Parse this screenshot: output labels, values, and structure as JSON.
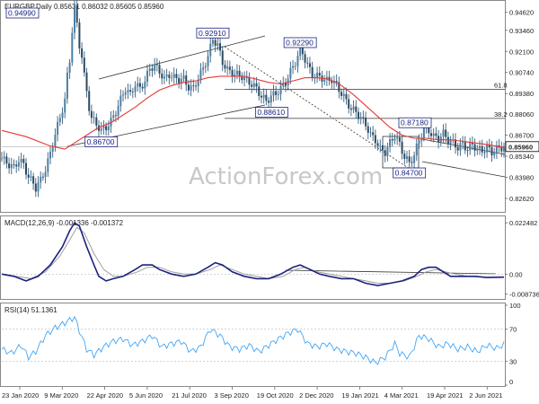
{
  "chart_data": [
    {
      "type": "candlestick",
      "header": "EURGBP,Daily  0.85631 0.86032 0.85605 0.85960",
      "price_axis": {
        "ylim": [
          0.8175,
          0.953
        ],
        "ticks": [
          "0.94620",
          "0.93460",
          "0.92100",
          "0.90740",
          "0.89380",
          "0.88060",
          "0.86700",
          "0.85340",
          "0.83980",
          "0.82620"
        ]
      },
      "last_price": "0.85960",
      "date_labels": [
        "23 Jan 2020",
        "9 Mar 2020",
        "22 Apr 2020",
        "5 Jun 2020",
        "21 Jul 2020",
        "3 Sep 2020",
        "19 Oct 2020",
        "2 Dec 2020",
        "19 Jan 2021",
        "4 Mar 2021",
        "19 Apr 2021",
        "2 Jun 2021"
      ],
      "close_path": [
        [
          0,
          0.852
        ],
        [
          3,
          0.848
        ],
        [
          5,
          0.846
        ],
        [
          7,
          0.851
        ],
        [
          9,
          0.848
        ],
        [
          11,
          0.84
        ],
        [
          13,
          0.836
        ],
        [
          14,
          0.833
        ],
        [
          16,
          0.838
        ],
        [
          18,
          0.845
        ],
        [
          20,
          0.855
        ],
        [
          22,
          0.868
        ],
        [
          24,
          0.878
        ],
        [
          26,
          0.89
        ],
        [
          27,
          0.905
        ],
        [
          28,
          0.915
        ],
        [
          29,
          0.935
        ],
        [
          30,
          0.949
        ],
        [
          31,
          0.938
        ],
        [
          32,
          0.925
        ],
        [
          33,
          0.918
        ],
        [
          34,
          0.905
        ],
        [
          35,
          0.895
        ],
        [
          36,
          0.885
        ],
        [
          37,
          0.878
        ],
        [
          39,
          0.874
        ],
        [
          41,
          0.87
        ],
        [
          43,
          0.872
        ],
        [
          45,
          0.876
        ],
        [
          47,
          0.882
        ],
        [
          49,
          0.89
        ],
        [
          51,
          0.897
        ],
        [
          53,
          0.893
        ],
        [
          55,
          0.9
        ],
        [
          57,
          0.897
        ],
        [
          59,
          0.902
        ],
        [
          61,
          0.91
        ],
        [
          63,
          0.912
        ],
        [
          65,
          0.908
        ],
        [
          67,
          0.903
        ],
        [
          69,
          0.906
        ],
        [
          71,
          0.904
        ],
        [
          73,
          0.903
        ],
        [
          75,
          0.903
        ],
        [
          77,
          0.898
        ],
        [
          79,
          0.897
        ],
        [
          81,
          0.904
        ],
        [
          83,
          0.91
        ],
        [
          85,
          0.918
        ],
        [
          87,
          0.929
        ],
        [
          89,
          0.925
        ],
        [
          91,
          0.914
        ],
        [
          93,
          0.909
        ],
        [
          95,
          0.907
        ],
        [
          97,
          0.906
        ],
        [
          99,
          0.905
        ],
        [
          101,
          0.902
        ],
        [
          103,
          0.9
        ],
        [
          105,
          0.897
        ],
        [
          107,
          0.892
        ],
        [
          109,
          0.889
        ],
        [
          111,
          0.892
        ],
        [
          113,
          0.894
        ],
        [
          115,
          0.897
        ],
        [
          117,
          0.901
        ],
        [
          119,
          0.908
        ],
        [
          121,
          0.914
        ],
        [
          123,
          0.922
        ],
        [
          124,
          0.92
        ],
        [
          126,
          0.912
        ],
        [
          128,
          0.906
        ],
        [
          130,
          0.905
        ],
        [
          132,
          0.904
        ],
        [
          134,
          0.902
        ],
        [
          136,
          0.903
        ],
        [
          138,
          0.899
        ],
        [
          140,
          0.894
        ],
        [
          142,
          0.889
        ],
        [
          144,
          0.884
        ],
        [
          146,
          0.882
        ],
        [
          148,
          0.878
        ],
        [
          150,
          0.874
        ],
        [
          152,
          0.867
        ],
        [
          154,
          0.864
        ],
        [
          156,
          0.858
        ],
        [
          158,
          0.856
        ],
        [
          160,
          0.862
        ],
        [
          162,
          0.867
        ],
        [
          164,
          0.861
        ],
        [
          166,
          0.853
        ],
        [
          168,
          0.849
        ],
        [
          170,
          0.854
        ],
        [
          172,
          0.864
        ],
        [
          174,
          0.871
        ],
        [
          176,
          0.87
        ],
        [
          178,
          0.866
        ],
        [
          180,
          0.865
        ],
        [
          182,
          0.868
        ],
        [
          184,
          0.864
        ],
        [
          186,
          0.862
        ],
        [
          188,
          0.859
        ],
        [
          190,
          0.861
        ],
        [
          192,
          0.858
        ],
        [
          194,
          0.861
        ],
        [
          196,
          0.858
        ],
        [
          198,
          0.857
        ],
        [
          200,
          0.859
        ],
        [
          202,
          0.856
        ],
        [
          204,
          0.858
        ],
        [
          206,
          0.859
        ],
        [
          207,
          0.8596
        ]
      ],
      "ma_path": [
        [
          0,
          0.87
        ],
        [
          10,
          0.866
        ],
        [
          20,
          0.86
        ],
        [
          26,
          0.858
        ],
        [
          30,
          0.862
        ],
        [
          35,
          0.867
        ],
        [
          40,
          0.872
        ],
        [
          45,
          0.875
        ],
        [
          50,
          0.88
        ],
        [
          55,
          0.885
        ],
        [
          60,
          0.891
        ],
        [
          65,
          0.896
        ],
        [
          70,
          0.899
        ],
        [
          75,
          0.901
        ],
        [
          80,
          0.902
        ],
        [
          85,
          0.904
        ],
        [
          90,
          0.905
        ],
        [
          95,
          0.905
        ],
        [
          100,
          0.905
        ],
        [
          105,
          0.903
        ],
        [
          110,
          0.901
        ],
        [
          115,
          0.9
        ],
        [
          120,
          0.902
        ],
        [
          125,
          0.904
        ],
        [
          130,
          0.904
        ],
        [
          135,
          0.903
        ],
        [
          140,
          0.899
        ],
        [
          145,
          0.893
        ],
        [
          150,
          0.886
        ],
        [
          155,
          0.879
        ],
        [
          160,
          0.872
        ],
        [
          165,
          0.867
        ],
        [
          170,
          0.865
        ],
        [
          175,
          0.865
        ],
        [
          180,
          0.864
        ],
        [
          185,
          0.864
        ],
        [
          190,
          0.863
        ],
        [
          195,
          0.862
        ],
        [
          200,
          0.861
        ],
        [
          207,
          0.859
        ]
      ],
      "price_labels": [
        {
          "text": "0.94990",
          "x": 30,
          "y": 0.9499
        },
        {
          "text": "0.92910",
          "x": 87,
          "y": 0.9291
        },
        {
          "text": "0.92290",
          "x": 123,
          "y": 0.9229
        },
        {
          "text": "0.88610",
          "x": 109,
          "y": 0.8861
        },
        {
          "text": "0.86700",
          "x": 41,
          "y": 0.867
        },
        {
          "text": "0.87180",
          "x": 172,
          "y": 0.8718
        },
        {
          "text": "0.84700",
          "x": 168,
          "y": 0.847
        }
      ],
      "fib_levels": [
        {
          "label": "61.8",
          "y": 0.8966
        },
        {
          "label": "38.2",
          "y": 0.8778
        }
      ]
    },
    {
      "type": "line",
      "header": "MACD(12,26,9) -0.001336 -0.001372",
      "ticks": [
        "0.022482",
        "0.00",
        "-0.008736"
      ],
      "ylim": [
        -0.0105,
        0.0245
      ],
      "macd": [
        [
          0,
          0.0
        ],
        [
          5,
          -0.001
        ],
        [
          10,
          -0.003
        ],
        [
          15,
          -0.001
        ],
        [
          20,
          0.004
        ],
        [
          25,
          0.012
        ],
        [
          28,
          0.019
        ],
        [
          30,
          0.0225
        ],
        [
          32,
          0.021
        ],
        [
          35,
          0.012
        ],
        [
          38,
          0.004
        ],
        [
          40,
          -0.001
        ],
        [
          43,
          -0.003
        ],
        [
          46,
          -0.002
        ],
        [
          50,
          -0.001
        ],
        [
          55,
          0.002
        ],
        [
          58,
          0.004
        ],
        [
          62,
          0.004
        ],
        [
          65,
          0.002
        ],
        [
          70,
          0.0
        ],
        [
          75,
          -0.001
        ],
        [
          80,
          0.0
        ],
        [
          85,
          0.003
        ],
        [
          88,
          0.005
        ],
        [
          91,
          0.004
        ],
        [
          95,
          0.001
        ],
        [
          100,
          -0.001
        ],
        [
          105,
          -0.002
        ],
        [
          110,
          -0.002
        ],
        [
          115,
          0.0
        ],
        [
          120,
          0.003
        ],
        [
          123,
          0.004
        ],
        [
          127,
          0.002
        ],
        [
          131,
          0.0
        ],
        [
          135,
          -0.001
        ],
        [
          140,
          -0.002
        ],
        [
          145,
          -0.002
        ],
        [
          150,
          -0.004
        ],
        [
          155,
          -0.005
        ],
        [
          160,
          -0.004
        ],
        [
          165,
          -0.003
        ],
        [
          170,
          -0.001
        ],
        [
          173,
          0.002
        ],
        [
          176,
          0.003
        ],
        [
          179,
          0.003
        ],
        [
          182,
          0.001
        ],
        [
          185,
          -0.001
        ],
        [
          190,
          -0.001
        ],
        [
          195,
          -0.001
        ],
        [
          200,
          -0.0015
        ],
        [
          207,
          -0.001336
        ]
      ],
      "signal": [
        [
          0,
          0.0
        ],
        [
          6,
          -0.001
        ],
        [
          12,
          -0.002
        ],
        [
          18,
          0.001
        ],
        [
          24,
          0.008
        ],
        [
          28,
          0.015
        ],
        [
          31,
          0.0205
        ],
        [
          34,
          0.018
        ],
        [
          38,
          0.009
        ],
        [
          42,
          0.002
        ],
        [
          46,
          -0.001
        ],
        [
          50,
          -0.001
        ],
        [
          56,
          0.001
        ],
        [
          60,
          0.003
        ],
        [
          65,
          0.003
        ],
        [
          70,
          0.001
        ],
        [
          75,
          0.0
        ],
        [
          80,
          0.0
        ],
        [
          86,
          0.002
        ],
        [
          90,
          0.004
        ],
        [
          95,
          0.002
        ],
        [
          100,
          0.0
        ],
        [
          105,
          -0.001
        ],
        [
          110,
          -0.002
        ],
        [
          116,
          -0.001
        ],
        [
          121,
          0.002
        ],
        [
          125,
          0.003
        ],
        [
          130,
          0.001
        ],
        [
          135,
          0.0
        ],
        [
          140,
          -0.001
        ],
        [
          145,
          -0.002
        ],
        [
          150,
          -0.003
        ],
        [
          155,
          -0.004
        ],
        [
          160,
          -0.004
        ],
        [
          166,
          -0.003
        ],
        [
          171,
          -0.001
        ],
        [
          175,
          0.001
        ],
        [
          179,
          0.002
        ],
        [
          183,
          0.001
        ],
        [
          187,
          0.0
        ],
        [
          192,
          -0.001
        ],
        [
          200,
          -0.0014
        ],
        [
          207,
          -0.001372
        ]
      ]
    },
    {
      "type": "line",
      "header": "RSI(14) 51.1361",
      "ticks": [
        "100",
        "70",
        "30",
        "0"
      ],
      "ylim": [
        0,
        100
      ],
      "rsi": [
        [
          0,
          45
        ],
        [
          4,
          40
        ],
        [
          8,
          50
        ],
        [
          11,
          35
        ],
        [
          14,
          42
        ],
        [
          18,
          62
        ],
        [
          22,
          72
        ],
        [
          26,
          78
        ],
        [
          30,
          85
        ],
        [
          32,
          68
        ],
        [
          35,
          45
        ],
        [
          38,
          38
        ],
        [
          42,
          48
        ],
        [
          46,
          55
        ],
        [
          50,
          58
        ],
        [
          54,
          50
        ],
        [
          58,
          55
        ],
        [
          62,
          62
        ],
        [
          66,
          48
        ],
        [
          70,
          52
        ],
        [
          74,
          55
        ],
        [
          78,
          42
        ],
        [
          82,
          48
        ],
        [
          86,
          70
        ],
        [
          90,
          62
        ],
        [
          94,
          48
        ],
        [
          98,
          45
        ],
        [
          102,
          50
        ],
        [
          106,
          42
        ],
        [
          110,
          50
        ],
        [
          114,
          58
        ],
        [
          118,
          65
        ],
        [
          122,
          70
        ],
        [
          126,
          52
        ],
        [
          130,
          48
        ],
        [
          134,
          52
        ],
        [
          138,
          45
        ],
        [
          142,
          42
        ],
        [
          146,
          40
        ],
        [
          150,
          35
        ],
        [
          154,
          28
        ],
        [
          158,
          35
        ],
        [
          162,
          52
        ],
        [
          164,
          40
        ],
        [
          168,
          35
        ],
        [
          172,
          62
        ],
        [
          176,
          58
        ],
        [
          180,
          48
        ],
        [
          184,
          52
        ],
        [
          188,
          45
        ],
        [
          192,
          48
        ],
        [
          196,
          42
        ],
        [
          200,
          50
        ],
        [
          204,
          46
        ],
        [
          207,
          51.1
        ]
      ]
    }
  ],
  "watermark": "ActionForex.com"
}
